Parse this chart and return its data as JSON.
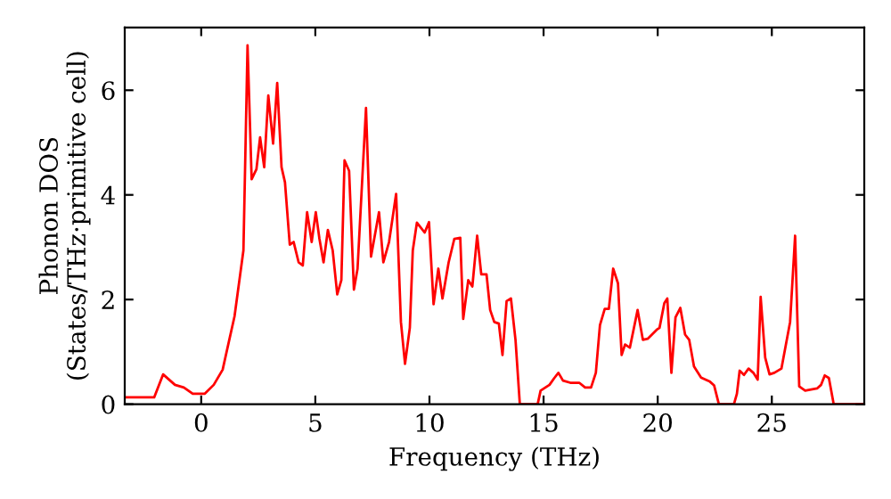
{
  "chart_data": {
    "type": "line",
    "xlabel": "Frequency (THz)",
    "ylabel": "Phonon DOS\n(States/THz·primitive cell)",
    "xlim": [
      -3.35,
      29.05
    ],
    "ylim": [
      0,
      7.2
    ],
    "xticks": [
      0,
      5,
      10,
      15,
      20,
      25
    ],
    "yticks": [
      0,
      2,
      4,
      6
    ],
    "grid": false,
    "marker": "none",
    "line_style": "solid",
    "series": [
      {
        "color": "#ff0000",
        "x": [
          -3.3,
          -2.06,
          -1.67,
          -1.15,
          -0.76,
          -0.37,
          0.16,
          0.55,
          0.94,
          1.2,
          1.46,
          1.85,
          2.03,
          2.21,
          2.42,
          2.58,
          2.76,
          2.94,
          3.15,
          3.33,
          3.52,
          3.67,
          3.88,
          4.05,
          4.27,
          4.45,
          4.64,
          4.84,
          5.02,
          5.18,
          5.36,
          5.55,
          5.76,
          5.96,
          6.14,
          6.28,
          6.48,
          6.69,
          6.85,
          7.22,
          7.44,
          7.79,
          7.98,
          8.23,
          8.54,
          8.75,
          8.93,
          9.14,
          9.27,
          9.45,
          9.79,
          9.98,
          10.18,
          10.39,
          10.57,
          10.84,
          11.09,
          11.35,
          11.48,
          11.7,
          11.88,
          12.09,
          12.27,
          12.5,
          12.66,
          12.84,
          13.04,
          13.2,
          13.38,
          13.57,
          13.77,
          13.96,
          14.74,
          14.87,
          15.26,
          15.47,
          15.65,
          15.85,
          16.17,
          16.56,
          16.82,
          17.08,
          17.29,
          17.47,
          17.68,
          17.86,
          18.05,
          18.26,
          18.42,
          18.57,
          18.78,
          19.12,
          19.35,
          19.56,
          19.95,
          20.08,
          20.29,
          20.42,
          20.6,
          20.78,
          20.99,
          21.2,
          21.38,
          21.59,
          21.9,
          22.29,
          22.47,
          22.68,
          23.34,
          23.47,
          23.59,
          23.78,
          23.98,
          24.19,
          24.38,
          24.51,
          24.71,
          24.9,
          25.11,
          25.42,
          25.8,
          26.02,
          26.2,
          26.46,
          26.98,
          27.16,
          27.32,
          27.5,
          27.71,
          29.05
        ],
        "values": [
          0.13,
          0.13,
          0.57,
          0.37,
          0.32,
          0.2,
          0.2,
          0.37,
          0.66,
          1.17,
          1.68,
          2.94,
          6.86,
          4.3,
          4.49,
          5.1,
          4.53,
          5.9,
          4.98,
          6.14,
          4.53,
          4.24,
          3.05,
          3.1,
          2.71,
          2.65,
          3.67,
          3.1,
          3.67,
          3.16,
          2.71,
          3.33,
          2.94,
          2.1,
          2.37,
          4.66,
          4.46,
          2.19,
          2.59,
          5.66,
          2.82,
          3.67,
          2.71,
          3.1,
          4.02,
          1.57,
          0.77,
          1.46,
          2.94,
          3.47,
          3.28,
          3.48,
          1.91,
          2.59,
          2.02,
          2.71,
          3.16,
          3.18,
          1.63,
          2.37,
          2.25,
          3.22,
          2.48,
          2.48,
          1.8,
          1.57,
          1.54,
          0.94,
          1.97,
          2.02,
          1.23,
          0.0,
          0.0,
          0.26,
          0.37,
          0.5,
          0.6,
          0.45,
          0.41,
          0.41,
          0.32,
          0.32,
          0.6,
          1.51,
          1.82,
          1.82,
          2.59,
          2.31,
          0.94,
          1.14,
          1.08,
          1.8,
          1.23,
          1.25,
          1.42,
          1.46,
          1.93,
          2.02,
          0.6,
          1.66,
          1.84,
          1.33,
          1.23,
          0.72,
          0.51,
          0.43,
          0.36,
          0.0,
          0.0,
          0.2,
          0.64,
          0.56,
          0.68,
          0.6,
          0.47,
          2.05,
          0.89,
          0.57,
          0.6,
          0.68,
          1.57,
          3.22,
          0.34,
          0.26,
          0.3,
          0.37,
          0.55,
          0.5,
          0.0,
          0.0
        ]
      }
    ]
  }
}
